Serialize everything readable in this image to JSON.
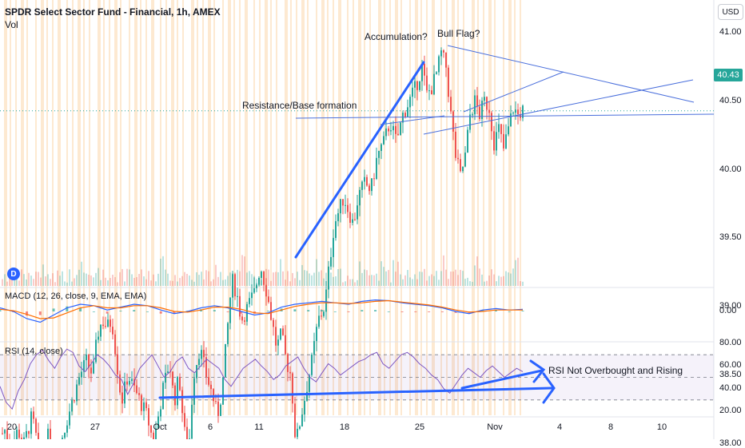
{
  "header": {
    "title": "SPDR Select Sector Fund - Financial, 1h, AMEX",
    "vol_label": "Vol",
    "currency": "USD",
    "last_price": "40.43",
    "dividend_marker": "D"
  },
  "panes": {
    "macd_label": "MACD (12, 26, close, 9, EMA, EMA)",
    "rsi_label": "RSI (14, close)"
  },
  "annotations": {
    "accumulation": "Accumulation?",
    "bull_flag": "Bull Flag?",
    "resistance": "Resistance/Base formation",
    "rsi_note": "RSI Not Overbought and Rising"
  },
  "colors": {
    "up": "#26a69a",
    "down": "#ef5350",
    "drawing": "#2962ff",
    "trendline": "#4a6fdc",
    "macd": "#2962ff",
    "signal": "#ff6d00",
    "rsi": "#7e57c2",
    "session_band": "#fde3c6"
  },
  "chart_data": [
    {
      "type": "candlestick",
      "title": "SPDR Select Sector Fund - Financial, 1h, AMEX",
      "y_ticks": [
        "41.00",
        "40.50",
        "40.00",
        "39.50",
        "39.00",
        "38.50",
        "38.00"
      ],
      "ylim": [
        37.6,
        41.25
      ],
      "x_ticks": [
        "20",
        "27",
        "Oct",
        "6",
        "11",
        "18",
        "25",
        "Nov",
        "4",
        "8",
        "10"
      ],
      "last_value": 40.43,
      "path": [
        [
          0,
          38.05
        ],
        [
          6,
          38.1
        ],
        [
          14,
          37.95
        ],
        [
          22,
          38.1
        ],
        [
          30,
          38.0
        ],
        [
          40,
          38.2
        ],
        [
          50,
          37.9
        ],
        [
          60,
          38.05
        ],
        [
          70,
          37.9
        ],
        [
          80,
          38.1
        ],
        [
          90,
          38.3
        ],
        [
          100,
          38.5
        ],
        [
          108,
          38.6
        ],
        [
          116,
          38.5
        ],
        [
          122,
          38.8
        ],
        [
          128,
          38.9
        ],
        [
          134,
          38.85
        ],
        [
          140,
          38.9
        ],
        [
          146,
          38.6
        ],
        [
          152,
          38.3
        ],
        [
          160,
          38.5
        ],
        [
          168,
          38.4
        ],
        [
          176,
          38.3
        ],
        [
          184,
          38.2
        ],
        [
          192,
          38.0
        ],
        [
          198,
          38.2
        ],
        [
          204,
          38.4
        ],
        [
          212,
          38.6
        ],
        [
          218,
          38.3
        ],
        [
          224,
          38.5
        ],
        [
          230,
          38.1
        ],
        [
          236,
          37.95
        ],
        [
          242,
          38.5
        ],
        [
          250,
          38.7
        ],
        [
          258,
          38.5
        ],
        [
          266,
          38.35
        ],
        [
          272,
          38.2
        ],
        [
          278,
          38.4
        ],
        [
          284,
          38.8
        ],
        [
          290,
          39.2
        ],
        [
          296,
          39.1
        ],
        [
          302,
          38.9
        ],
        [
          310,
          39.0
        ],
        [
          318,
          39.1
        ],
        [
          326,
          39.3
        ],
        [
          334,
          39.1
        ],
        [
          340,
          38.9
        ],
        [
          346,
          38.7
        ],
        [
          352,
          38.8
        ],
        [
          358,
          38.6
        ],
        [
          364,
          38.5
        ],
        [
          370,
          38.0
        ],
        [
          380,
          38.3
        ],
        [
          390,
          38.6
        ],
        [
          398,
          38.9
        ],
        [
          406,
          39.0
        ],
        [
          412,
          39.3
        ],
        [
          418,
          39.6
        ],
        [
          424,
          39.7
        ],
        [
          430,
          39.8
        ],
        [
          436,
          39.7
        ],
        [
          442,
          39.6
        ],
        [
          448,
          39.8
        ],
        [
          456,
          39.9
        ],
        [
          464,
          39.85
        ],
        [
          472,
          40.1
        ],
        [
          480,
          40.2
        ],
        [
          488,
          40.35
        ],
        [
          496,
          40.2
        ],
        [
          504,
          40.4
        ],
        [
          512,
          40.5
        ],
        [
          520,
          40.6
        ],
        [
          528,
          40.75
        ],
        [
          534,
          40.55
        ],
        [
          540,
          40.6
        ],
        [
          546,
          40.7
        ],
        [
          552,
          40.85
        ],
        [
          558,
          40.75
        ],
        [
          564,
          40.4
        ],
        [
          570,
          40.1
        ],
        [
          576,
          39.95
        ],
        [
          582,
          40.1
        ],
        [
          588,
          40.4
        ],
        [
          594,
          40.5
        ],
        [
          600,
          40.4
        ],
        [
          606,
          40.5
        ],
        [
          612,
          40.45
        ],
        [
          618,
          40.2
        ],
        [
          624,
          40.3
        ],
        [
          630,
          40.15
        ],
        [
          636,
          40.3
        ],
        [
          642,
          40.45
        ],
        [
          648,
          40.4
        ],
        [
          654,
          40.43
        ]
      ]
    },
    {
      "type": "line",
      "title": "MACD (12, 26, close, 9, EMA, EMA)",
      "y_ticks": [
        "0.00"
      ],
      "series": [
        {
          "role": "macd",
          "values": [
            0.05,
            0.0,
            -0.1,
            -0.15,
            -0.05,
            0.05,
            0.1,
            0.08,
            0.02,
            0.06,
            0.1,
            0.08,
            0.02,
            -0.03,
            0.0,
            0.05,
            0.08,
            0.05,
            0.0,
            -0.05,
            -0.02,
            0.06,
            0.1,
            0.12,
            0.14,
            0.12,
            0.1,
            0.14,
            0.16,
            0.15,
            0.12,
            0.1,
            0.08,
            0.05,
            0.0,
            -0.03,
            0.02,
            0.04,
            0.02,
            0.03
          ]
        },
        {
          "role": "signal",
          "values": [
            0.03,
            0.01,
            -0.04,
            -0.1,
            -0.09,
            -0.02,
            0.05,
            0.08,
            0.05,
            0.05,
            0.08,
            0.08,
            0.05,
            0.0,
            -0.01,
            0.02,
            0.06,
            0.06,
            0.03,
            -0.02,
            -0.03,
            0.02,
            0.07,
            0.1,
            0.12,
            0.12,
            0.11,
            0.12,
            0.14,
            0.15,
            0.13,
            0.11,
            0.09,
            0.06,
            0.02,
            -0.01,
            0.0,
            0.02,
            0.02,
            0.02
          ]
        }
      ]
    },
    {
      "type": "line",
      "title": "RSI (14, close)",
      "y_ticks": [
        "80.00",
        "60.00",
        "40.00",
        "20.00"
      ],
      "ylim": [
        15,
        87
      ],
      "levels": [
        70,
        30
      ],
      "values": [
        42,
        28,
        22,
        38,
        48,
        62,
        70,
        74,
        65,
        58,
        68,
        75,
        72,
        60,
        55,
        62,
        70,
        66,
        60,
        52,
        48,
        35,
        45,
        58,
        64,
        70,
        60,
        50,
        55,
        64,
        68,
        58,
        54,
        60,
        66,
        62,
        58,
        48,
        42,
        50,
        58,
        62,
        66,
        60,
        55,
        48,
        52,
        60,
        64,
        68,
        58,
        50,
        46,
        54,
        62,
        58,
        52,
        56,
        60,
        64,
        66,
        70,
        72,
        62,
        58,
        64,
        70,
        72,
        68,
        62,
        58,
        52,
        48,
        40,
        36,
        44,
        52,
        58,
        54,
        50,
        56,
        60,
        55,
        50,
        54,
        58,
        55
      ]
    }
  ]
}
